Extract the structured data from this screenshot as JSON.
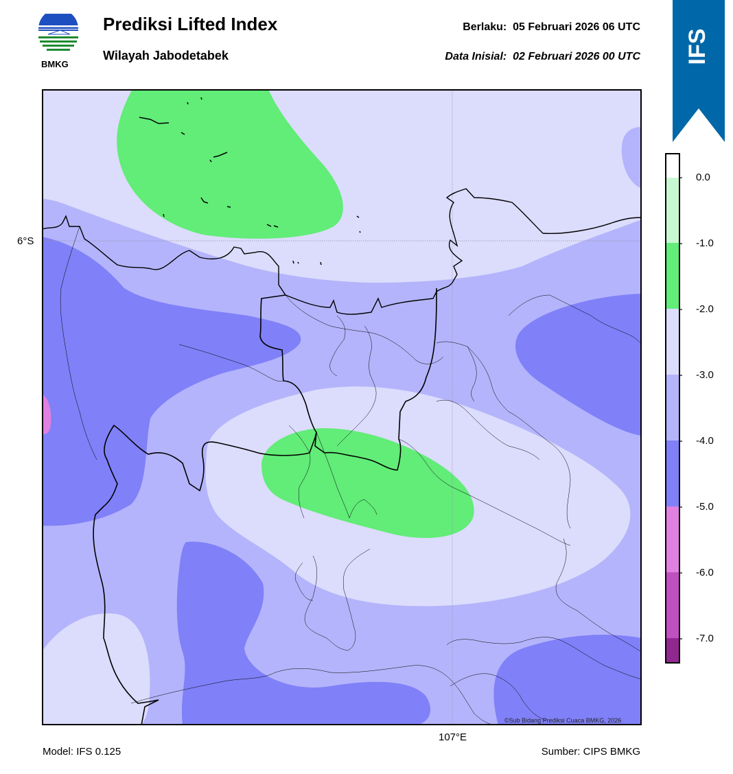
{
  "header": {
    "title": "Prediksi Lifted Index",
    "subtitle": "Wilayah Jabodetabek",
    "valid_label": "Berlaku:",
    "valid_time": "05 Februari 2026 06 UTC",
    "init_label": "Data Inisial:",
    "init_time": "02 Februari 2026 00 UTC"
  },
  "logo": {
    "text": "BMKG",
    "icon": "bmkg-logo"
  },
  "badge": {
    "text": "IFS",
    "color": "#0068a8"
  },
  "map": {
    "lat_label": "6°S",
    "lon_label": "107°E",
    "copyright": "©Sub Bidang Prediksi Cuaca BMKG, 2026"
  },
  "colorbar": {
    "ticks": [
      "0.0",
      "-1.0",
      "-2.0",
      "-3.0",
      "-4.0",
      "-5.0",
      "-6.0",
      "-7.0"
    ],
    "colors": [
      "#ffffff",
      "#c8f8d2",
      "#62ec78",
      "#dcdcfc",
      "#b4b4fc",
      "#8080f8",
      "#e080e0",
      "#c050c0",
      "#902890"
    ]
  },
  "footer": {
    "model": "Model: IFS 0.125",
    "source": "Sumber: CIPS BMKG"
  }
}
